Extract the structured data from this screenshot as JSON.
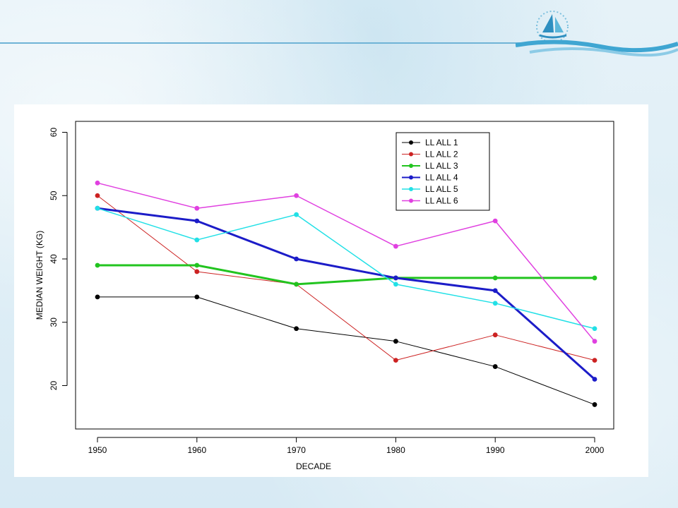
{
  "slide": {
    "accent_color": "#6fb3d6",
    "logo_icon": "boat-emblem-icon"
  },
  "chart_data": {
    "type": "line",
    "title": "",
    "xlabel": "DECADE",
    "ylabel": "MEDIAN WEIGHT (KG)",
    "x": [
      1950,
      1960,
      1970,
      1980,
      1990,
      2000
    ],
    "xticks": [
      "1950",
      "1960",
      "1970",
      "1980",
      "1990",
      "2000"
    ],
    "yticks": [
      "20",
      "30",
      "40",
      "50",
      "60"
    ],
    "ylim": [
      15,
      62
    ],
    "grid": false,
    "legend_position": "top-right",
    "series": [
      {
        "name": "LL ALL 1",
        "color": "#000000",
        "width": 1,
        "values": [
          34,
          34,
          29,
          27,
          23,
          17
        ]
      },
      {
        "name": "LL ALL 2",
        "color": "#cc2222",
        "width": 1,
        "values": [
          50,
          38,
          36,
          24,
          28,
          24
        ]
      },
      {
        "name": "LL ALL 3",
        "color": "#22c41f",
        "width": 3,
        "values": [
          39,
          39,
          36,
          37,
          37,
          37
        ]
      },
      {
        "name": "LL ALL 4",
        "color": "#1c1cc8",
        "width": 3,
        "values": [
          48,
          46,
          40,
          37,
          35,
          21
        ]
      },
      {
        "name": "LL ALL 5",
        "color": "#22e0e6",
        "width": 1.5,
        "values": [
          48,
          43,
          47,
          36,
          33,
          29
        ]
      },
      {
        "name": "LL ALL 6",
        "color": "#e040e0",
        "width": 1.5,
        "values": [
          52,
          48,
          50,
          42,
          46,
          27
        ]
      }
    ]
  }
}
